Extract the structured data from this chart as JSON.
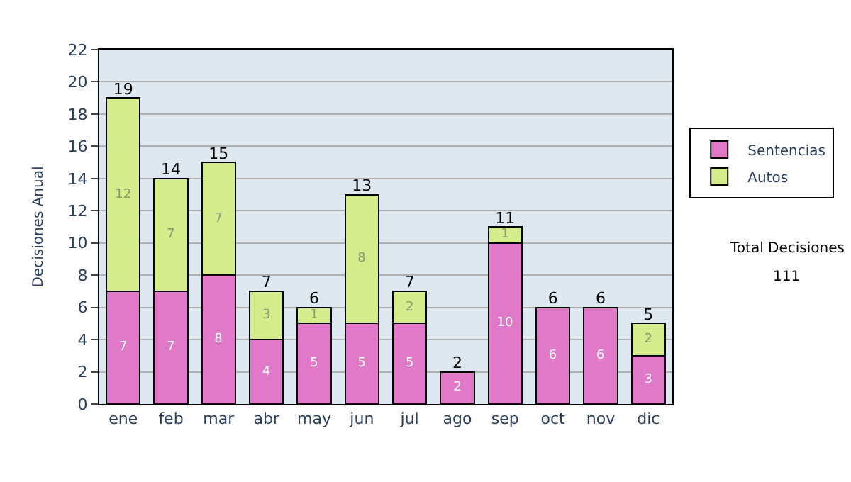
{
  "chart_data": {
    "type": "bar",
    "stacked": true,
    "ylabel": "Decisiones Anual",
    "categories": [
      "ene",
      "feb",
      "mar",
      "abr",
      "may",
      "jun",
      "jul",
      "ago",
      "sep",
      "oct",
      "nov",
      "dic"
    ],
    "series": [
      {
        "name": "Sentencias",
        "color": "#e07ac8",
        "values": [
          7,
          7,
          8,
          4,
          5,
          5,
          5,
          2,
          10,
          6,
          6,
          3
        ],
        "value_labels": [
          "7",
          "7",
          "8",
          "4",
          "5",
          "5",
          "5",
          "2",
          "10",
          "6",
          "6",
          "3"
        ]
      },
      {
        "name": "Autos",
        "color": "#d4ec8c",
        "values": [
          12,
          7,
          7,
          3,
          1,
          8,
          2,
          0,
          1,
          0,
          0,
          2
        ],
        "value_labels": [
          "12",
          "7",
          "7",
          "3",
          "1",
          "8",
          "2",
          null,
          "1",
          null,
          null,
          "2"
        ]
      }
    ],
    "totals": [
      "19",
      "14",
      "15",
      "7",
      "6",
      "13",
      "7",
      "2",
      "11",
      "6",
      "6",
      "5"
    ],
    "ylim": [
      0,
      22
    ],
    "yticks": [
      0,
      2,
      4,
      6,
      8,
      10,
      12,
      14,
      16,
      18,
      20,
      22
    ],
    "grid": "y",
    "legend": "right",
    "annotations": [
      "Total Decisiones",
      "111"
    ]
  }
}
